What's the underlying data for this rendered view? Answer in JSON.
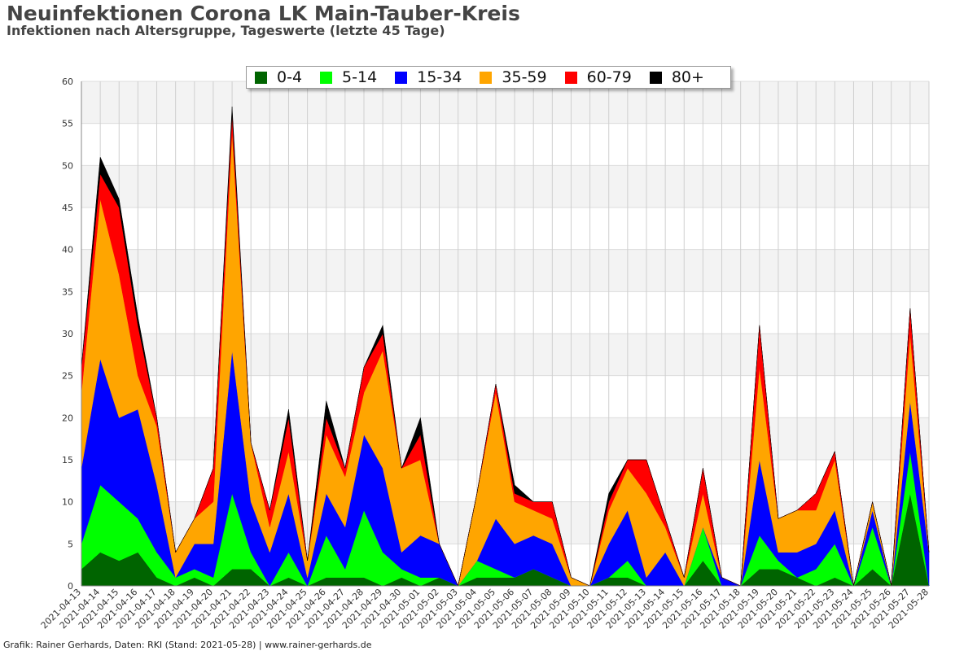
{
  "title": "Neuinfektionen Corona LK Main-Tauber-Kreis",
  "subtitle": "Infektionen nach Altersgruppe, Tageswerte (letzte 45 Tage)",
  "footer": "Grafik: Rainer Gerhards, Daten: RKI (Stand: 2021-05-28) | www.rainer-gerhards.de",
  "chart_data": {
    "type": "area",
    "stacked": true,
    "title": "Neuinfektionen Corona LK Main-Tauber-Kreis",
    "xlabel": "",
    "ylabel": "",
    "ylim": [
      0,
      60
    ],
    "yticks": [
      0,
      5,
      10,
      15,
      20,
      25,
      30,
      35,
      40,
      45,
      50,
      55,
      60
    ],
    "grid": true,
    "legend_position": "top",
    "categories": [
      "2021-04-13",
      "2021-04-14",
      "2021-04-15",
      "2021-04-16",
      "2021-04-17",
      "2021-04-18",
      "2021-04-19",
      "2021-04-20",
      "2021-04-21",
      "2021-04-22",
      "2021-04-23",
      "2021-04-24",
      "2021-04-25",
      "2021-04-26",
      "2021-04-27",
      "2021-04-28",
      "2021-04-29",
      "2021-04-30",
      "2021-05-01",
      "2021-05-02",
      "2021-05-03",
      "2021-05-04",
      "2021-05-05",
      "2021-05-06",
      "2021-05-07",
      "2021-05-08",
      "2021-05-09",
      "2021-05-10",
      "2021-05-11",
      "2021-05-12",
      "2021-05-13",
      "2021-05-14",
      "2021-05-15",
      "2021-05-16",
      "2021-05-17",
      "2021-05-18",
      "2021-05-19",
      "2021-05-20",
      "2021-05-21",
      "2021-05-22",
      "2021-05-23",
      "2021-05-24",
      "2021-05-25",
      "2021-05-26",
      "2021-05-27",
      "2021-05-28"
    ],
    "series": [
      {
        "name": "0-4",
        "color": "#006400",
        "values": [
          2,
          4,
          3,
          4,
          1,
          0,
          1,
          0,
          2,
          2,
          0,
          1,
          0,
          1,
          1,
          1,
          0,
          1,
          0,
          1,
          0,
          1,
          1,
          1,
          2,
          1,
          0,
          0,
          1,
          1,
          0,
          0,
          0,
          3,
          0,
          0,
          2,
          2,
          1,
          0,
          1,
          0,
          2,
          0,
          11,
          0
        ]
      },
      {
        "name": "5-14",
        "color": "#00ff00",
        "values": [
          3,
          8,
          7,
          4,
          3,
          1,
          1,
          1,
          9,
          2,
          0,
          3,
          0,
          5,
          1,
          8,
          4,
          1,
          1,
          0,
          0,
          2,
          1,
          0,
          0,
          0,
          0,
          0,
          0,
          2,
          0,
          0,
          0,
          4,
          0,
          0,
          4,
          1,
          0,
          2,
          4,
          0,
          5,
          0,
          5,
          0
        ]
      },
      {
        "name": "15-34",
        "color": "#0000ff",
        "values": [
          9,
          15,
          10,
          13,
          8,
          0,
          3,
          4,
          17,
          6,
          4,
          7,
          1,
          5,
          5,
          9,
          10,
          2,
          5,
          4,
          0,
          0,
          6,
          4,
          4,
          4,
          0,
          0,
          4,
          6,
          1,
          4,
          0,
          0,
          1,
          0,
          9,
          1,
          3,
          3,
          4,
          0,
          2,
          0,
          6,
          4
        ]
      },
      {
        "name": "35-59",
        "color": "#ffa500",
        "values": [
          9,
          19,
          17,
          4,
          7,
          3,
          3,
          5,
          26,
          7,
          3,
          5,
          2,
          7,
          6,
          5,
          14,
          10,
          9,
          0,
          0,
          8,
          15,
          5,
          3,
          3,
          1,
          0,
          4,
          5,
          10,
          3,
          1,
          4,
          0,
          0,
          11,
          4,
          5,
          4,
          6,
          0,
          1,
          0,
          8,
          0
        ]
      },
      {
        "name": "60-79",
        "color": "#ff0000",
        "values": [
          3,
          3,
          8,
          6,
          1,
          0,
          0,
          4,
          2,
          0,
          2,
          4,
          0,
          2,
          1,
          3,
          2,
          0,
          3,
          0,
          0,
          0,
          1,
          1,
          1,
          2,
          0,
          0,
          1,
          1,
          4,
          1,
          0,
          3,
          0,
          0,
          5,
          0,
          0,
          2,
          1,
          0,
          0,
          0,
          3,
          0
        ]
      },
      {
        "name": "80+",
        "color": "#000000",
        "values": [
          0,
          2,
          1,
          1,
          0,
          0,
          0,
          0,
          1,
          0,
          0,
          1,
          0,
          2,
          0,
          0,
          1,
          0,
          2,
          0,
          0,
          0,
          0,
          1,
          0,
          0,
          0,
          0,
          1,
          0,
          0,
          0,
          0,
          0,
          0,
          0,
          0,
          0,
          0,
          0,
          0,
          0,
          0,
          0,
          0,
          0
        ]
      }
    ]
  }
}
